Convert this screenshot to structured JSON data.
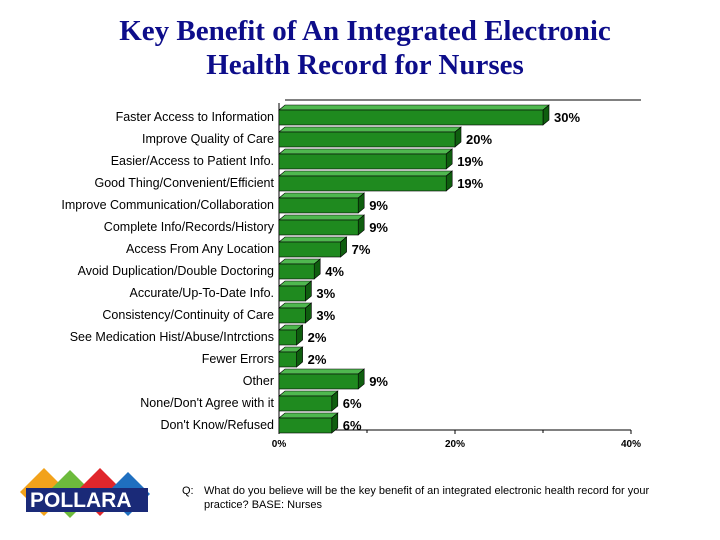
{
  "chart_data": {
    "type": "bar",
    "orientation": "horizontal",
    "title": [
      "Key Benefit of An Integrated Electronic",
      "Health Record for Nurses"
    ],
    "categories": [
      "Faster Access to Information",
      "Improve Quality of Care",
      "Easier/Access to Patient Info.",
      "Good Thing/Convenient/Efficient",
      "Improve Communication/Collaboration",
      "Complete Info/Records/History",
      "Access From Any Location",
      "Avoid Duplication/Double Doctoring",
      "Accurate/Up-To-Date Info.",
      "Consistency/Continuity of Care",
      "See Medication Hist/Abuse/Intrctions",
      "Fewer Errors",
      "Other",
      "None/Don't Agree with it",
      "Don't Know/Refused"
    ],
    "values": [
      30,
      20,
      19,
      19,
      9,
      9,
      7,
      4,
      3,
      3,
      2,
      2,
      9,
      6,
      6
    ],
    "value_labels": [
      "30%",
      "20%",
      "19%",
      "19%",
      "9%",
      "9%",
      "7%",
      "4%",
      "3%",
      "3%",
      "2%",
      "2%",
      "9%",
      "6%",
      "6%"
    ],
    "xlim": [
      0,
      40
    ],
    "x_ticks": [
      "0%",
      "20%",
      "40%"
    ],
    "bar_color": "#1f8a1f",
    "bar_top_color": "#4fb84f",
    "grid": true,
    "legend": "none"
  },
  "footer": {
    "logo_text": "POLLARA",
    "question_prefix": "Q:",
    "question": "What do you believe will be the key benefit of an integrated electronic health record for your practice? BASE: Nurses"
  }
}
